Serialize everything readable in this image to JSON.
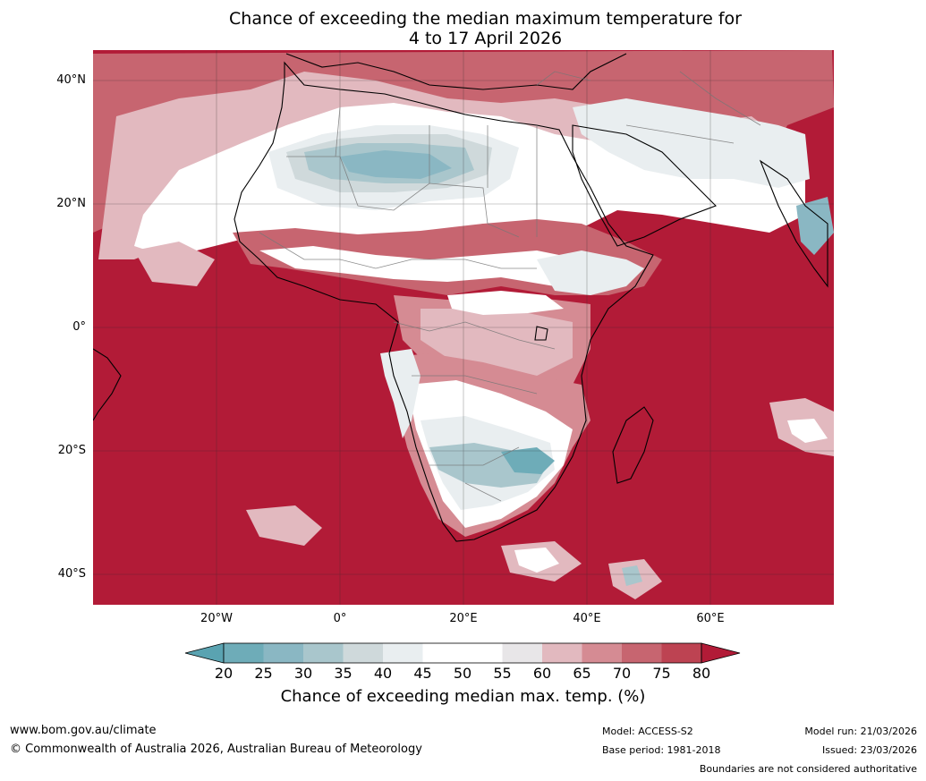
{
  "title_line1": "Chance of exceeding the median maximum temperature for",
  "title_line2": "4 to 17 April 2026",
  "colors": {
    "very_high": "#b21b37",
    "c80": "#bd4352",
    "c75": "#c76570",
    "c70": "#d58b93",
    "c65": "#e2b9bf",
    "c60": "#e8e6e8",
    "c55": "#ffffff",
    "c45": "#e9eef0",
    "c40": "#cfd9db",
    "c35": "#a9c6cc",
    "c30": "#8ab7c3",
    "c25": "#6eacb8",
    "c20": "#5aa3b1"
  },
  "axes": {
    "lat_labels": [
      "40°N",
      "20°N",
      "0°",
      "20°S",
      "40°S"
    ],
    "lon_labels": [
      "20°W",
      "0°",
      "20°E",
      "40°E",
      "60°E"
    ]
  },
  "colorbar": {
    "ticks": [
      "20",
      "25",
      "30",
      "35",
      "40",
      "45",
      "50",
      "55",
      "60",
      "65",
      "70",
      "75",
      "80"
    ],
    "title": "Chance of exceeding median max. temp. (%)"
  },
  "footer": {
    "website": "www.bom.gov.au/climate",
    "copyright": "© Commonwealth of Australia 2026, Australian Bureau of Meteorology",
    "model": "Model: ACCESS-S2",
    "base_period": "Base period: 1981-2018",
    "model_run": "Model run: 21/03/2026",
    "issued": "Issued: 23/03/2026",
    "disclaimer": "Boundaries are not considered authoritative"
  }
}
